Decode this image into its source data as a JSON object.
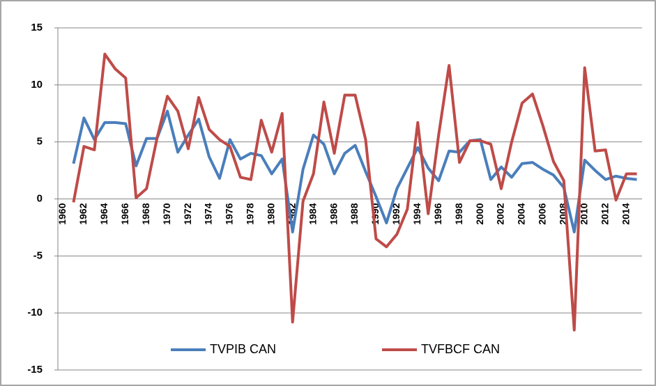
{
  "chart_data": {
    "type": "line",
    "categories": [
      "1960",
      null,
      "1962",
      null,
      "1964",
      null,
      "1966",
      null,
      "1968",
      null,
      "1970",
      null,
      "1972",
      null,
      "1974",
      null,
      "1976",
      null,
      "1978",
      null,
      "1980",
      null,
      "1982",
      null,
      "1984",
      null,
      "1986",
      null,
      "1988",
      null,
      "1990",
      null,
      "1992",
      null,
      "1994",
      null,
      "1996",
      null,
      "1998",
      null,
      "2000",
      null,
      "2002",
      null,
      "2004",
      null,
      "2006",
      null,
      "2008",
      null,
      "2010",
      null,
      "2012",
      null,
      "2014",
      null
    ],
    "series": [
      {
        "name": "TVPIB CAN",
        "color": "#4a7ebb",
        "values": [
          null,
          3.1,
          7.1,
          5.2,
          6.7,
          6.7,
          6.6,
          2.9,
          5.3,
          5.3,
          7.7,
          4.1,
          5.6,
          7.0,
          3.7,
          1.8,
          5.2,
          3.5,
          4.0,
          3.8,
          2.2,
          3.5,
          -2.9,
          2.6,
          5.6,
          4.8,
          2.2,
          4.0,
          4.7,
          2.4,
          0.2,
          -2.1,
          0.9,
          2.7,
          4.5,
          2.7,
          1.6,
          4.2,
          4.1,
          5.1,
          5.2,
          1.7,
          2.8,
          1.9,
          3.1,
          3.2,
          2.6,
          2.1,
          1.0,
          -2.9,
          3.4,
          2.5,
          1.7,
          2.0,
          1.8,
          1.7
        ]
      },
      {
        "name": "TVFBCF CAN",
        "color": "#be4b48",
        "values": [
          null,
          -0.3,
          4.6,
          4.3,
          12.7,
          11.4,
          10.6,
          0.1,
          0.9,
          5.3,
          9.0,
          7.7,
          4.4,
          8.9,
          6.1,
          5.2,
          4.6,
          1.9,
          1.7,
          6.9,
          4.1,
          7.5,
          -10.8,
          -0.2,
          2.2,
          8.5,
          4.0,
          9.1,
          9.1,
          5.2,
          -3.5,
          -4.2,
          -3.1,
          -0.9,
          6.7,
          -1.3,
          5.6,
          11.7,
          3.2,
          5.1,
          5.1,
          4.8,
          0.9,
          5.0,
          8.4,
          9.2,
          6.4,
          3.3,
          1.6,
          -11.5,
          11.5,
          4.2,
          4.3,
          -0.1,
          2.2,
          2.2
        ]
      }
    ],
    "ylim": [
      -15,
      15
    ],
    "yticks": [
      -15,
      -10,
      -5,
      0,
      5,
      10,
      15
    ],
    "grid": true,
    "legend": "bottom"
  }
}
